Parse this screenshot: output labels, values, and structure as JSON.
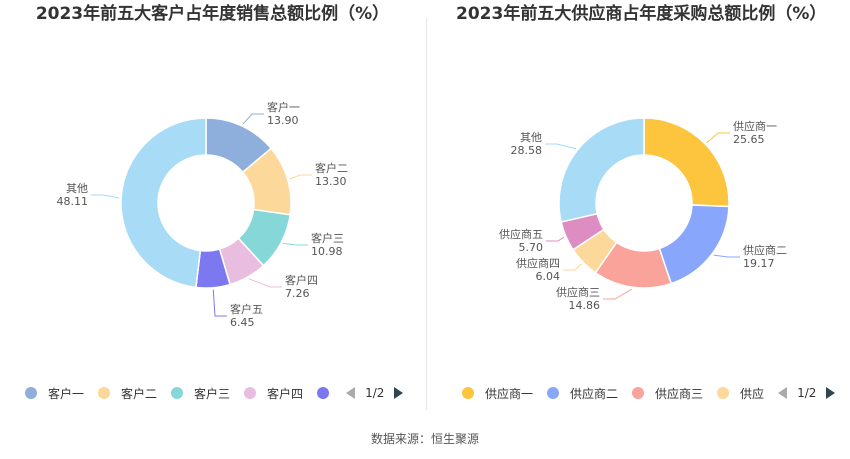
{
  "source": "数据来源：恒生聚源",
  "chart_data": [
    {
      "type": "pie",
      "title": "2023年前五大客户占年度销售总额比例（%）",
      "categories": [
        "客户一",
        "客户二",
        "客户三",
        "客户四",
        "客户五",
        "其他"
      ],
      "values": [
        13.9,
        13.3,
        10.98,
        7.26,
        6.45,
        48.11
      ],
      "value_labels": [
        "13.90",
        "13.30",
        "10.98",
        "7.26",
        "6.45",
        "48.11"
      ],
      "colors": [
        "#8eaedc",
        "#fdd89b",
        "#86d8d8",
        "#e8bddf",
        "#7b78f0",
        "#a8dbf6"
      ],
      "legend_visible": [
        "客户一",
        "客户二",
        "客户三",
        "客户四",
        ""
      ],
      "legend_page": "1/2",
      "legend_position": "bottom"
    },
    {
      "type": "pie",
      "title": "2023年前五大供应商占年度采购总额比例（%）",
      "categories": [
        "供应商一",
        "供应商二",
        "供应商三",
        "供应商四",
        "供应商五",
        "其他"
      ],
      "values": [
        25.65,
        19.17,
        14.86,
        6.04,
        5.7,
        28.58
      ],
      "value_labels": [
        "25.65",
        "19.17",
        "14.86",
        "6.04",
        "5.70",
        "28.58"
      ],
      "colors": [
        "#fdc43d",
        "#88a6fb",
        "#f9a39a",
        "#fdd89b",
        "#dd8dc2",
        "#a8dbf6"
      ],
      "legend_visible": [
        "供应商一",
        "供应商二",
        "供应商三",
        "供应"
      ],
      "legend_page": "1/2",
      "legend_position": "bottom"
    }
  ]
}
